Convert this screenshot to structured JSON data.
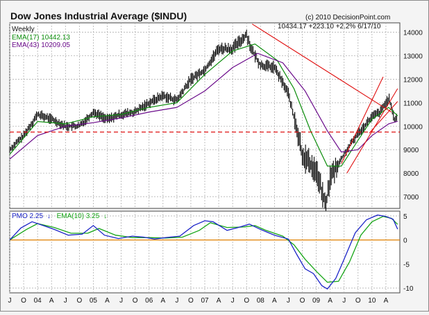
{
  "header": {
    "title": "Dow Jones Industrial Average ($INDU)",
    "copyright": "(c) 2010 DecisionPoint.com",
    "period": "Weekly",
    "quote": "10434.17   +223.10  +2.2%  6/17/10",
    "ema17_label": "EMA(17) 10442.13",
    "ema43_label": "EMA(43) 10209.05",
    "pmo_label": "PMO  2.25",
    "pmo_arrow": "↓",
    "pmo_ema_label": "EMA(10)  3.25",
    "pmo_ema_arrow": "↓"
  },
  "colors": {
    "price": "#000000",
    "ema17": "#0b8c0b",
    "ema43": "#6a0a8a",
    "pmo": "#1c24c8",
    "pmo_ema": "#17a617",
    "trend": "#e01010",
    "zero": "#e08000",
    "grid": "#b0b0b0"
  },
  "chart_data": [
    {
      "type": "line",
      "subtype": "ohlc-weekly",
      "title": "Dow Jones Industrial Average ($INDU)",
      "ylim": [
        6500,
        14400
      ],
      "yticks": [
        7000,
        8000,
        9000,
        10000,
        11000,
        12000,
        13000,
        14000
      ],
      "x_ticks": [
        "J",
        "O",
        "04",
        "A",
        "J",
        "O",
        "05",
        "A",
        "J",
        "O",
        "06",
        "A",
        "J",
        "O",
        "07",
        "A",
        "J",
        "O",
        "08",
        "A",
        "J",
        "O",
        "09",
        "A",
        "J",
        "O",
        "10",
        "A"
      ],
      "x_range": [
        2003.5,
        2010.5
      ],
      "grid": true,
      "series": [
        {
          "name": "$INDU",
          "x": [
            2003.5,
            2003.75,
            2004.0,
            2004.25,
            2004.5,
            2004.75,
            2005.0,
            2005.25,
            2005.5,
            2005.75,
            2006.0,
            2006.25,
            2006.5,
            2006.75,
            2007.0,
            2007.25,
            2007.5,
            2007.75,
            2007.85,
            2008.0,
            2008.25,
            2008.5,
            2008.75,
            2008.85,
            2009.0,
            2009.17,
            2009.25,
            2009.5,
            2009.75,
            2010.0,
            2010.15,
            2010.3,
            2010.4,
            2010.46
          ],
          "values": [
            9000,
            9600,
            10500,
            10300,
            10000,
            10000,
            10600,
            10300,
            10500,
            10600,
            11000,
            11300,
            11100,
            12000,
            12400,
            13300,
            13300,
            13900,
            13200,
            12600,
            12500,
            11400,
            8800,
            8500,
            8100,
            6600,
            7800,
            8800,
            9700,
            10400,
            10600,
            11200,
            10300,
            10400
          ]
        },
        {
          "name": "EMA(17)",
          "x": [
            2003.5,
            2004.0,
            2004.5,
            2005.0,
            2005.5,
            2006.0,
            2006.5,
            2007.0,
            2007.5,
            2007.9,
            2008.3,
            2008.6,
            2008.9,
            2009.2,
            2009.45,
            2009.75,
            2010.0,
            2010.3,
            2010.46
          ],
          "values": [
            8800,
            10200,
            10100,
            10400,
            10500,
            10800,
            11000,
            12200,
            13200,
            13500,
            12800,
            11600,
            9800,
            8300,
            8300,
            9400,
            10300,
            10800,
            10442
          ]
        },
        {
          "name": "EMA(43)",
          "x": [
            2003.5,
            2004.0,
            2004.5,
            2005.0,
            2005.5,
            2006.0,
            2006.5,
            2007.0,
            2007.5,
            2007.95,
            2008.4,
            2008.8,
            2009.2,
            2009.45,
            2009.75,
            2010.0,
            2010.3,
            2010.46
          ],
          "values": [
            8600,
            9600,
            10000,
            10150,
            10350,
            10600,
            10800,
            11500,
            12500,
            13100,
            12700,
            11500,
            9800,
            8900,
            9000,
            9600,
            10100,
            10209
          ]
        }
      ],
      "annotations": [
        {
          "kind": "horizontal-dashed",
          "y": 9750
        },
        {
          "kind": "trendline",
          "x": [
            2007.85,
            2010.35
          ],
          "values": [
            14350,
            10600
          ]
        },
        {
          "kind": "trendline",
          "x": [
            2009.45,
            2010.2
          ],
          "values": [
            8400,
            12100
          ]
        },
        {
          "kind": "trendline",
          "x": [
            2009.55,
            2010.46
          ],
          "values": [
            8000,
            11600
          ]
        },
        {
          "kind": "trendline",
          "x": [
            2009.95,
            2010.46
          ],
          "values": [
            9700,
            11050
          ]
        }
      ]
    },
    {
      "type": "line",
      "title": "PMO",
      "ylim": [
        -11,
        6
      ],
      "yticks": [
        -10,
        -5,
        0,
        5
      ],
      "series": [
        {
          "name": "PMO",
          "x": [
            2003.5,
            2003.7,
            2003.9,
            2004.1,
            2004.3,
            2004.55,
            2004.8,
            2005.0,
            2005.2,
            2005.45,
            2005.7,
            2005.9,
            2006.1,
            2006.3,
            2006.55,
            2006.8,
            2007.0,
            2007.15,
            2007.4,
            2007.6,
            2007.8,
            2008.0,
            2008.25,
            2008.5,
            2008.65,
            2008.8,
            2008.95,
            2009.1,
            2009.2,
            2009.35,
            2009.5,
            2009.7,
            2009.9,
            2010.1,
            2010.25,
            2010.38,
            2010.46
          ],
          "values": [
            0,
            2.5,
            3.8,
            3.0,
            2.2,
            1.0,
            1.2,
            3.0,
            1.0,
            0.3,
            0.8,
            0.6,
            0.2,
            0.5,
            0.8,
            3.0,
            4.0,
            3.8,
            2.0,
            2.6,
            3.3,
            2.2,
            1.0,
            0.2,
            -3.0,
            -6.0,
            -7.0,
            -9.5,
            -10.2,
            -8.0,
            -4.0,
            1.5,
            4.2,
            5.2,
            4.9,
            4.3,
            2.25
          ]
        },
        {
          "name": "EMA(10)",
          "x": [
            2003.5,
            2003.8,
            2004.0,
            2004.3,
            2004.6,
            2004.9,
            2005.1,
            2005.4,
            2005.7,
            2006.0,
            2006.3,
            2006.6,
            2006.9,
            2007.1,
            2007.4,
            2007.7,
            2007.9,
            2008.1,
            2008.4,
            2008.6,
            2008.8,
            2009.0,
            2009.2,
            2009.4,
            2009.6,
            2009.8,
            2010.0,
            2010.2,
            2010.35,
            2010.46
          ],
          "values": [
            0,
            2.2,
            3.4,
            2.6,
            1.4,
            1.4,
            2.4,
            1.0,
            0.5,
            0.5,
            0.4,
            0.6,
            2.0,
            3.6,
            2.6,
            2.7,
            3.0,
            2.0,
            0.8,
            -1.0,
            -4.0,
            -6.5,
            -8.8,
            -8.6,
            -4.5,
            1.0,
            3.8,
            4.9,
            4.5,
            3.25
          ]
        }
      ]
    }
  ]
}
